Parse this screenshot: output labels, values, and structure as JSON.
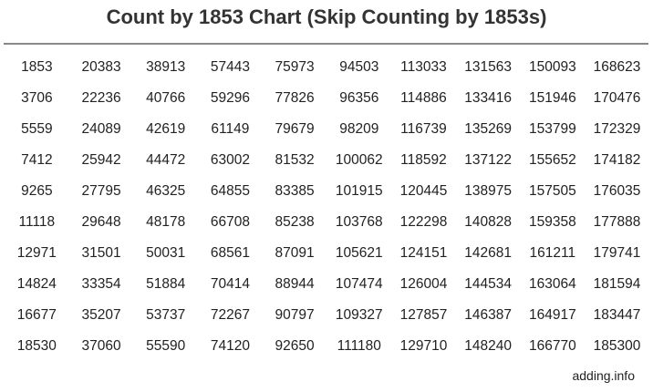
{
  "title": "Count by 1853 Chart (Skip Counting by 1853s)",
  "rows": [
    [
      "1853",
      "20383",
      "38913",
      "57443",
      "75973",
      "94503",
      "113033",
      "131563",
      "150093",
      "168623"
    ],
    [
      "3706",
      "22236",
      "40766",
      "59296",
      "77826",
      "96356",
      "114886",
      "133416",
      "151946",
      "170476"
    ],
    [
      "5559",
      "24089",
      "42619",
      "61149",
      "79679",
      "98209",
      "116739",
      "135269",
      "153799",
      "172329"
    ],
    [
      "7412",
      "25942",
      "44472",
      "63002",
      "81532",
      "100062",
      "118592",
      "137122",
      "155652",
      "174182"
    ],
    [
      "9265",
      "27795",
      "46325",
      "64855",
      "83385",
      "101915",
      "120445",
      "138975",
      "157505",
      "176035"
    ],
    [
      "11118",
      "29648",
      "48178",
      "66708",
      "85238",
      "103768",
      "122298",
      "140828",
      "159358",
      "177888"
    ],
    [
      "12971",
      "31501",
      "50031",
      "68561",
      "87091",
      "105621",
      "124151",
      "142681",
      "161211",
      "179741"
    ],
    [
      "14824",
      "33354",
      "51884",
      "70414",
      "88944",
      "107474",
      "126004",
      "144534",
      "163064",
      "181594"
    ],
    [
      "16677",
      "35207",
      "53737",
      "72267",
      "90797",
      "109327",
      "127857",
      "146387",
      "164917",
      "183447"
    ],
    [
      "18530",
      "37060",
      "55590",
      "74120",
      "92650",
      "111180",
      "129710",
      "148240",
      "166770",
      "185300"
    ]
  ],
  "footer": "adding.info"
}
